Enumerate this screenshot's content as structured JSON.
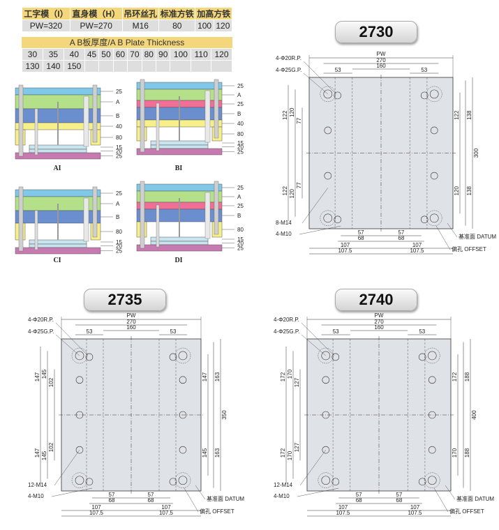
{
  "spec_table": {
    "headers": [
      "工字模（I）",
      "直身模（H）",
      "吊环丝孔",
      "标准方铁",
      "加高方铁"
    ],
    "values": [
      "PW=320",
      "PW=270",
      "M16",
      "80",
      "100",
      "120"
    ]
  },
  "thickness": {
    "title": "A B板厚度/A B Plate Thickness",
    "row1": [
      "30",
      "35",
      "40",
      "45",
      "50",
      "60",
      "70",
      "80",
      "90",
      "100",
      "110",
      "120"
    ],
    "row2": [
      "130",
      "140",
      "150"
    ]
  },
  "badges": {
    "a": "2730",
    "b": "2735",
    "c": "2740"
  },
  "mold_types": {
    "ai": "AI",
    "bi": "BI",
    "ci": "CI",
    "di": "DI"
  },
  "layer_labels": {
    "ai": [
      "25",
      "A",
      "B",
      "40",
      "80",
      "15",
      "20",
      "25"
    ],
    "bi": [
      "25",
      "A",
      "25",
      "B",
      "40",
      "80",
      "15",
      "20",
      "25"
    ],
    "ci": [
      "25",
      "A",
      "B",
      "80",
      "15",
      "20",
      "25"
    ],
    "di": [
      "25",
      "A",
      "25",
      "B",
      "80",
      "15",
      "20",
      "25"
    ]
  },
  "plan_labels": {
    "rp": "4-Φ20R.P.",
    "gp": "4-Φ25G.P.",
    "pw": "PW",
    "w270": "270",
    "w160": "160",
    "w53": "53",
    "datum": "基准面 DATUM",
    "offset": "偏孔 OFFSET",
    "m10": "4-M10",
    "d57": "57",
    "d68": "68",
    "d107": "107",
    "d1075": "107.5"
  },
  "p2730": {
    "m": "8-M14",
    "left": [
      "122",
      "120",
      "77",
      "122",
      "120",
      "77"
    ],
    "right": [
      "122",
      "138",
      "120",
      "138"
    ],
    "total": "300"
  },
  "p2735": {
    "m": "12-M14",
    "left": [
      "147",
      "145",
      "102",
      "147",
      "145",
      "102"
    ],
    "right": [
      "147",
      "163",
      "145",
      "163"
    ],
    "total": "350"
  },
  "p2740": {
    "m": "12-M14",
    "left": [
      "172",
      "170",
      "127",
      "172",
      "170",
      "127"
    ],
    "right": [
      "172",
      "188",
      "170",
      "188"
    ],
    "total": "400"
  }
}
